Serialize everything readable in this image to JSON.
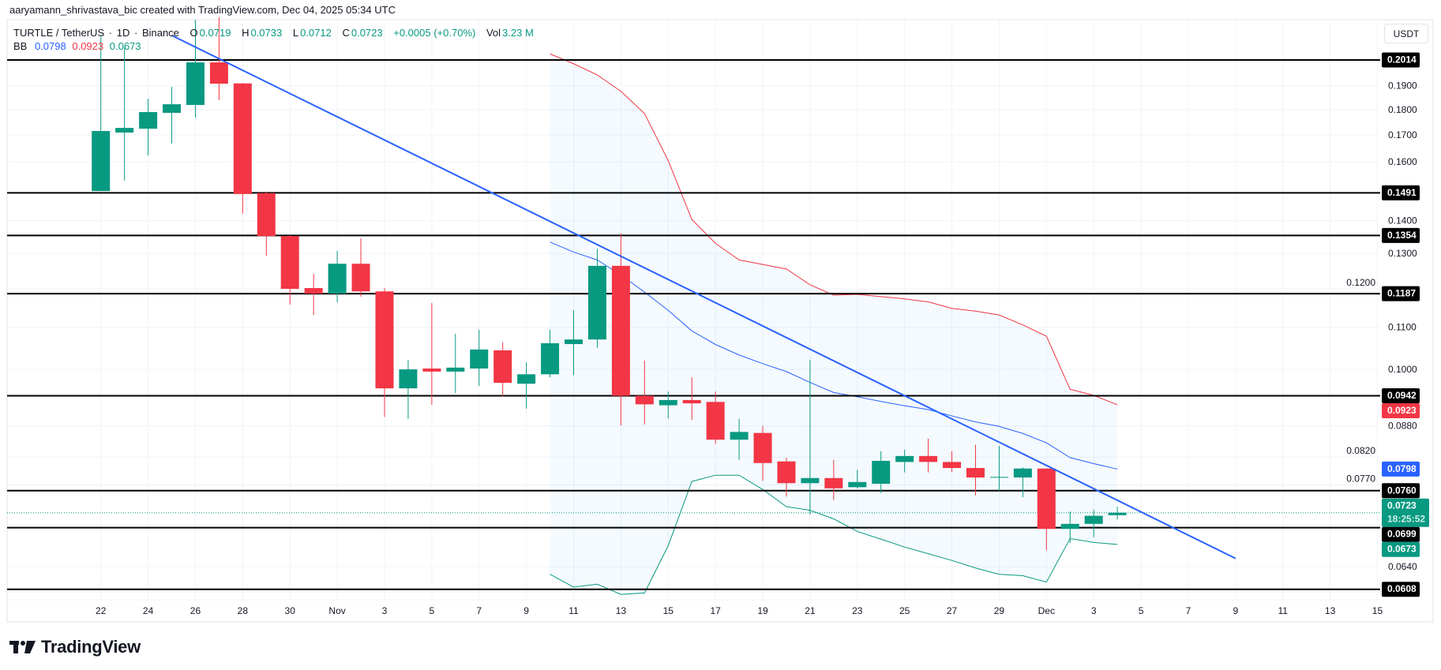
{
  "byline": "aaryamann_shrivastava_bic created with TradingView.com, Dec 04, 2025 05:34 UTC",
  "legend": {
    "symbol": "TURTLE / TetherUS",
    "interval": "1D",
    "exchange": "Binance",
    "open_label": "O",
    "open": "0.0719",
    "high_label": "H",
    "high": "0.0733",
    "low_label": "L",
    "low": "0.0712",
    "close_label": "C",
    "close": "0.0723",
    "change": "+0.0005 (+0.70%)",
    "volume_label": "Vol",
    "volume": "3.23 M"
  },
  "bb_legend": {
    "label": "BB",
    "basis": "0.0798",
    "upper": "0.0923",
    "lower": "0.0673"
  },
  "currency_button": "USDT",
  "brand": "TradingView",
  "colors": {
    "up": "#089981",
    "down": "#f23645",
    "trendline": "#2962ff",
    "bb_basis": "#2962ff",
    "bb_upper": "#f23645",
    "bb_lower": "#089981",
    "bb_fill": "#2196f3",
    "level": "#000000"
  },
  "chart_data": {
    "type": "candlestick",
    "title": "",
    "y_scale": "log",
    "grid": true,
    "y_ticks": [
      "0.1900",
      "0.1800",
      "0.1700",
      "0.1600",
      "0.1400",
      "0.1300",
      "0.1200",
      "0.1100",
      "0.1000",
      "0.0880",
      "0.0820",
      "0.0770",
      "0.0640"
    ],
    "x_ticks": [
      {
        "label": "22",
        "date": "2025-10-22"
      },
      {
        "label": "24",
        "date": "2025-10-24"
      },
      {
        "label": "26",
        "date": "2025-10-26"
      },
      {
        "label": "28",
        "date": "2025-10-28"
      },
      {
        "label": "30",
        "date": "2025-10-30"
      },
      {
        "label": "Nov",
        "date": "2025-11-01"
      },
      {
        "label": "3",
        "date": "2025-11-03"
      },
      {
        "label": "5",
        "date": "2025-11-05"
      },
      {
        "label": "7",
        "date": "2025-11-07"
      },
      {
        "label": "9",
        "date": "2025-11-09"
      },
      {
        "label": "11",
        "date": "2025-11-11"
      },
      {
        "label": "13",
        "date": "2025-11-13"
      },
      {
        "label": "15",
        "date": "2025-11-15"
      },
      {
        "label": "17",
        "date": "2025-11-17"
      },
      {
        "label": "19",
        "date": "2025-11-19"
      },
      {
        "label": "21",
        "date": "2025-11-21"
      },
      {
        "label": "23",
        "date": "2025-11-23"
      },
      {
        "label": "25",
        "date": "2025-11-25"
      },
      {
        "label": "27",
        "date": "2025-11-27"
      },
      {
        "label": "29",
        "date": "2025-11-29"
      },
      {
        "label": "Dec",
        "date": "2025-12-01"
      },
      {
        "label": "3",
        "date": "2025-12-03"
      },
      {
        "label": "5",
        "date": "2025-12-05"
      },
      {
        "label": "7",
        "date": "2025-12-07"
      },
      {
        "label": "9",
        "date": "2025-12-09"
      },
      {
        "label": "11",
        "date": "2025-12-11"
      },
      {
        "label": "13",
        "date": "2025-12-13"
      },
      {
        "label": "15",
        "date": "2025-12-15"
      }
    ],
    "candles_columns": [
      "date",
      "open",
      "high",
      "low",
      "close"
    ],
    "candles": [
      [
        "2025-10-22",
        0.1497,
        0.2121,
        0.1497,
        0.1715
      ],
      [
        "2025-10-23",
        0.1709,
        0.2072,
        0.1533,
        0.1727
      ],
      [
        "2025-10-24",
        0.1724,
        0.1845,
        0.1623,
        0.179
      ],
      [
        "2025-10-25",
        0.1787,
        0.1895,
        0.1667,
        0.1822
      ],
      [
        "2025-10-26",
        0.1819,
        0.2206,
        0.1768,
        0.2003
      ],
      [
        "2025-10-27",
        0.2003,
        0.2218,
        0.1839,
        0.1909
      ],
      [
        "2025-10-28",
        0.191,
        0.1912,
        0.1422,
        0.1487
      ],
      [
        "2025-10-29",
        0.149,
        0.1495,
        0.1293,
        0.1352
      ],
      [
        "2025-10-30",
        0.1352,
        0.1355,
        0.1158,
        0.12
      ],
      [
        "2025-10-31",
        0.1202,
        0.1241,
        0.1131,
        0.1187
      ],
      [
        "2025-11-01",
        0.1187,
        0.1308,
        0.1164,
        0.127
      ],
      [
        "2025-11-02",
        0.127,
        0.1345,
        0.1179,
        0.1193
      ],
      [
        "2025-11-03",
        0.1193,
        0.1202,
        0.0898,
        0.0958
      ],
      [
        "2025-11-04",
        0.0958,
        0.1022,
        0.0894,
        0.1
      ],
      [
        "2025-11-05",
        0.1002,
        0.1162,
        0.0923,
        0.0995
      ],
      [
        "2025-11-06",
        0.0995,
        0.1084,
        0.0948,
        0.1004
      ],
      [
        "2025-11-07",
        0.1002,
        0.1094,
        0.0963,
        0.1046
      ],
      [
        "2025-11-08",
        0.1044,
        0.1063,
        0.0941,
        0.097
      ],
      [
        "2025-11-09",
        0.0968,
        0.1016,
        0.0915,
        0.0989
      ],
      [
        "2025-11-10",
        0.0989,
        0.1094,
        0.0982,
        0.1061
      ],
      [
        "2025-11-11",
        0.1059,
        0.1143,
        0.0987,
        0.107
      ],
      [
        "2025-11-12",
        0.107,
        0.1314,
        0.105,
        0.1264
      ],
      [
        "2025-11-13",
        0.1264,
        0.136,
        0.0881,
        0.0942
      ],
      [
        "2025-11-14",
        0.0942,
        0.102,
        0.0883,
        0.0924
      ],
      [
        "2025-11-15",
        0.0922,
        0.0951,
        0.0895,
        0.0933
      ],
      [
        "2025-11-16",
        0.0933,
        0.0982,
        0.0892,
        0.0926
      ],
      [
        "2025-11-17",
        0.0929,
        0.0951,
        0.0845,
        0.0853
      ],
      [
        "2025-11-18",
        0.0853,
        0.0894,
        0.0815,
        0.0868
      ],
      [
        "2025-11-19",
        0.0866,
        0.088,
        0.0777,
        0.0809
      ],
      [
        "2025-11-20",
        0.0812,
        0.0819,
        0.075,
        0.0773
      ],
      [
        "2025-11-21",
        0.0773,
        0.1022,
        0.072,
        0.0782
      ],
      [
        "2025-11-22",
        0.0782,
        0.0815,
        0.0744,
        0.0764
      ],
      [
        "2025-11-23",
        0.0766,
        0.0797,
        0.0764,
        0.0775
      ],
      [
        "2025-11-24",
        0.0772,
        0.0831,
        0.0756,
        0.0813
      ],
      [
        "2025-11-25",
        0.0811,
        0.0834,
        0.0792,
        0.0822
      ],
      [
        "2025-11-26",
        0.0822,
        0.0855,
        0.0792,
        0.0811
      ],
      [
        "2025-11-27",
        0.0811,
        0.0831,
        0.0793,
        0.08
      ],
      [
        "2025-11-28",
        0.08,
        0.0843,
        0.0752,
        0.0783
      ],
      [
        "2025-11-29",
        0.0783,
        0.0841,
        0.076,
        0.0784
      ],
      [
        "2025-11-30",
        0.0783,
        0.0801,
        0.0749,
        0.0799
      ],
      [
        "2025-12-01",
        0.0799,
        0.0799,
        0.0664,
        0.0697
      ],
      [
        "2025-12-02",
        0.0697,
        0.0725,
        0.0675,
        0.0705
      ],
      [
        "2025-12-03",
        0.0705,
        0.0728,
        0.0684,
        0.0718
      ],
      [
        "2025-12-04",
        0.0719,
        0.0733,
        0.0712,
        0.0723
      ]
    ],
    "bollinger": {
      "start_date": "2025-11-10",
      "upper": [
        0.2042,
        0.1997,
        0.1947,
        0.1876,
        0.1784,
        0.1604,
        0.1404,
        0.133,
        0.1281,
        0.1268,
        0.1255,
        0.1211,
        0.1183,
        0.1185,
        0.1179,
        0.1173,
        0.1165,
        0.1148,
        0.1141,
        0.1131,
        0.1106,
        0.1078,
        0.0956,
        0.0943,
        0.0923
      ],
      "basis": [
        0.1334,
        0.1304,
        0.1281,
        0.1238,
        0.1191,
        0.1143,
        0.1091,
        0.1058,
        0.1033,
        0.1013,
        0.0995,
        0.0971,
        0.0949,
        0.094,
        0.093,
        0.0921,
        0.0913,
        0.09,
        0.0888,
        0.0879,
        0.0865,
        0.0847,
        0.0819,
        0.0808,
        0.0798
      ],
      "lower": [
        0.0629,
        0.0611,
        0.0615,
        0.0601,
        0.0603,
        0.0671,
        0.0776,
        0.0787,
        0.0787,
        0.0762,
        0.0733,
        0.0727,
        0.0713,
        0.0693,
        0.0681,
        0.0669,
        0.0659,
        0.0649,
        0.0638,
        0.0629,
        0.0627,
        0.0618,
        0.0682,
        0.0676,
        0.0673
      ]
    },
    "trendline": [
      {
        "date": "2025-10-25",
        "price": 0.2129
      },
      {
        "date": "2025-12-09",
        "price": 0.0652
      }
    ],
    "horizontal_levels": [
      "0.2014",
      "0.1491",
      "0.1354",
      "0.1187",
      "0.0942",
      "0.0760",
      "0.0699",
      "0.0608"
    ],
    "current_price": {
      "value": "0.0723",
      "countdown": "18:25:52"
    },
    "axis_badges": [
      {
        "value": "0.0923",
        "color": "#f23645"
      },
      {
        "value": "0.0798",
        "color": "#2962ff"
      },
      {
        "value": "0.0673",
        "color": "#089981"
      }
    ]
  }
}
